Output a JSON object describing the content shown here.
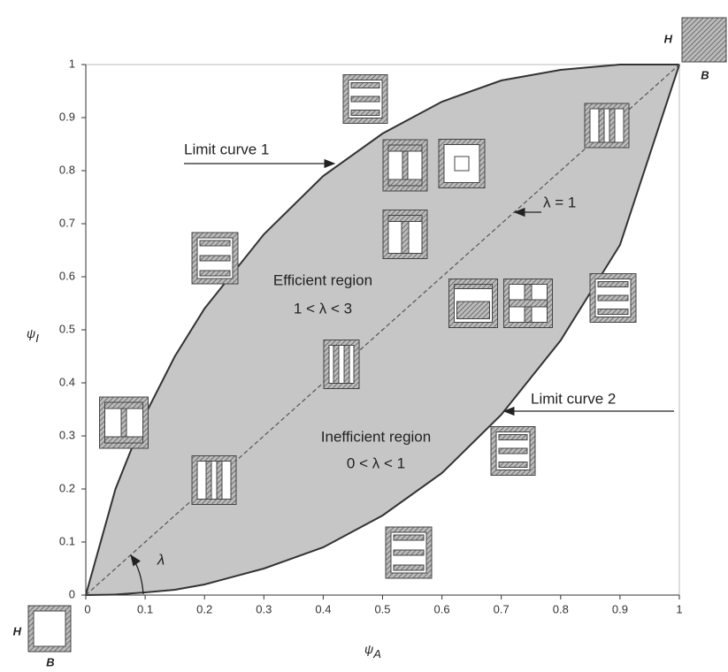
{
  "chart_data": {
    "type": "region",
    "x_label": {
      "symbol": "ψ",
      "subscript": "A"
    },
    "y_label": {
      "symbol": "ψ",
      "subscript": "I"
    },
    "x": [
      0,
      0.05,
      0.1,
      0.15,
      0.2,
      0.3,
      0.4,
      0.5,
      0.6,
      0.7,
      0.8,
      0.9,
      1
    ],
    "series": [
      {
        "name": "Limit curve 1",
        "color": "#333333",
        "values": [
          0,
          0.2,
          0.34,
          0.45,
          0.54,
          0.68,
          0.79,
          0.87,
          0.93,
          0.97,
          0.99,
          1,
          1
        ]
      },
      {
        "name": "Limit curve 2",
        "color": "#333333",
        "values": [
          0,
          0.001,
          0.005,
          0.01,
          0.02,
          0.05,
          0.09,
          0.15,
          0.23,
          0.34,
          0.48,
          0.66,
          1
        ]
      },
      {
        "name": "λ = 1",
        "color": "#555555",
        "values": [
          0,
          0.05,
          0.1,
          0.15,
          0.2,
          0.3,
          0.4,
          0.5,
          0.6,
          0.7,
          0.8,
          0.9,
          1
        ]
      }
    ],
    "region_color": "#c6c6c6",
    "annotations": [
      "Efficient region",
      "1 < λ < 3",
      "Inefficient region",
      "0 < λ < 1",
      "λ"
    ],
    "corner_labels": {
      "top": [
        "H",
        "B"
      ],
      "bottom": [
        "H",
        "B"
      ]
    },
    "xlim": [
      0,
      1
    ],
    "ylim": [
      0,
      1
    ],
    "xticks": [
      0,
      0.1,
      0.2,
      0.3,
      0.4,
      0.5,
      0.6,
      0.7,
      0.8,
      0.9,
      1
    ],
    "yticks": [
      0,
      0.1,
      0.2,
      0.3,
      0.4,
      0.5,
      0.6,
      0.7,
      0.8,
      0.9,
      1
    ],
    "grid": false
  }
}
